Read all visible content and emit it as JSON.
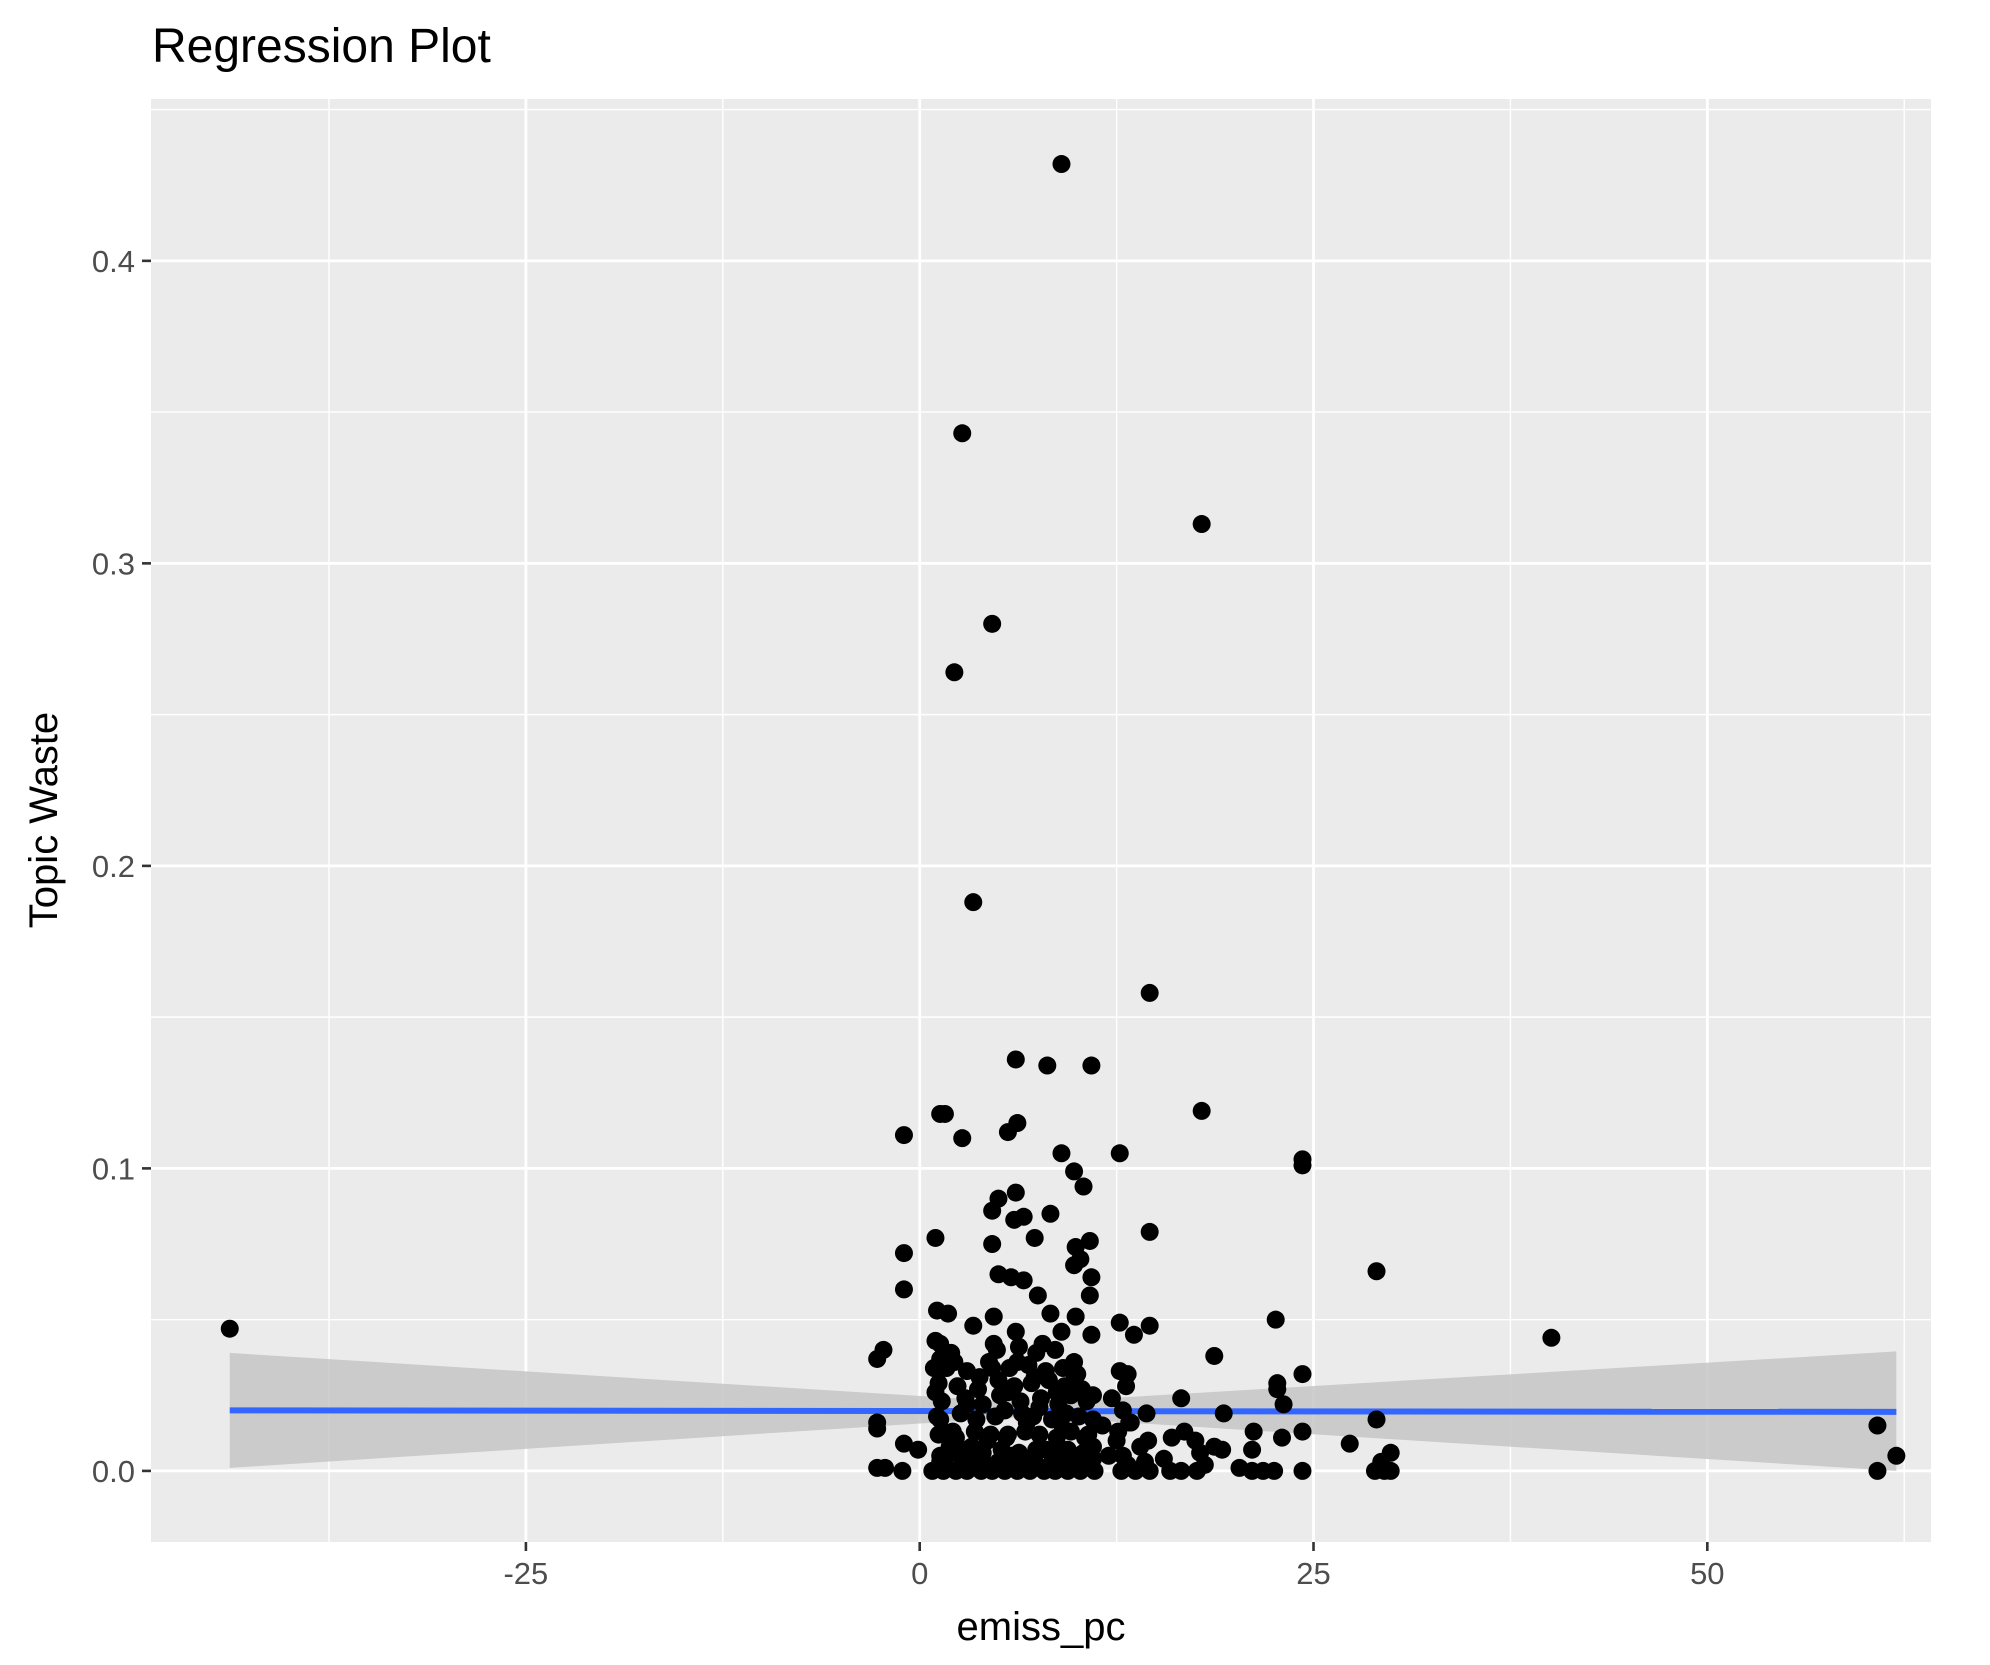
{
  "chart_data": {
    "type": "scatter",
    "title": "Regression Plot",
    "xlabel": "emiss_pc",
    "ylabel": "Topic Waste",
    "xlim": [
      -48.8,
      64.2
    ],
    "ylim": [
      -0.0235,
      0.4535
    ],
    "x_ticks": [
      -25,
      0,
      25,
      50
    ],
    "x_tick_labels": [
      "-25",
      "0",
      "25",
      "50"
    ],
    "y_ticks": [
      0.0,
      0.1,
      0.2,
      0.3,
      0.4
    ],
    "y_tick_labels": [
      "0.0",
      "0.1",
      "0.2",
      "0.3",
      "0.4"
    ],
    "grid": true,
    "legend": "none",
    "colors": {
      "panel_background": "#ebebeb",
      "grid": "#ffffff",
      "points": "#000000",
      "fit_line": "#3366ff",
      "confidence_band": "#c6c6c6"
    },
    "series": [
      {
        "points": [
          [
            -43.8,
            0.047
          ],
          [
            9.0,
            0.432
          ],
          [
            2.7,
            0.343
          ],
          [
            17.9,
            0.313
          ],
          [
            4.6,
            0.28
          ],
          [
            2.2,
            0.264
          ],
          [
            3.4,
            0.188
          ],
          [
            14.6,
            0.158
          ],
          [
            6.1,
            0.136
          ],
          [
            8.1,
            0.134
          ],
          [
            10.9,
            0.134
          ],
          [
            17.9,
            0.119
          ],
          [
            1.3,
            0.118
          ],
          [
            1.6,
            0.118
          ],
          [
            6.2,
            0.115
          ],
          [
            5.6,
            0.112
          ],
          [
            -1.0,
            0.111
          ],
          [
            2.7,
            0.11
          ],
          [
            9.0,
            0.105
          ],
          [
            12.7,
            0.105
          ],
          [
            24.3,
            0.103
          ],
          [
            24.3,
            0.101
          ],
          [
            9.8,
            0.099
          ],
          [
            10.4,
            0.094
          ],
          [
            6.1,
            0.092
          ],
          [
            5.0,
            0.09
          ],
          [
            4.6,
            0.086
          ],
          [
            8.3,
            0.085
          ],
          [
            6.6,
            0.084
          ],
          [
            6.0,
            0.083
          ],
          [
            14.6,
            0.079
          ],
          [
            7.3,
            0.077
          ],
          [
            1.0,
            0.077
          ],
          [
            10.8,
            0.076
          ],
          [
            4.6,
            0.075
          ],
          [
            9.9,
            0.074
          ],
          [
            -1.0,
            0.072
          ],
          [
            10.2,
            0.07
          ],
          [
            9.8,
            0.068
          ],
          [
            29.0,
            0.066
          ],
          [
            5.0,
            0.065
          ],
          [
            5.8,
            0.064
          ],
          [
            10.9,
            0.064
          ],
          [
            6.6,
            0.063
          ],
          [
            -1.0,
            0.06
          ],
          [
            7.5,
            0.058
          ],
          [
            10.8,
            0.058
          ],
          [
            1.1,
            0.053
          ],
          [
            1.8,
            0.052
          ],
          [
            4.7,
            0.051
          ],
          [
            8.3,
            0.052
          ],
          [
            9.9,
            0.051
          ],
          [
            12.7,
            0.049
          ],
          [
            22.6,
            0.05
          ],
          [
            3.4,
            0.048
          ],
          [
            14.6,
            0.048
          ],
          [
            6.1,
            0.046
          ],
          [
            9.0,
            0.046
          ],
          [
            10.9,
            0.045
          ],
          [
            13.6,
            0.045
          ],
          [
            40.1,
            0.044
          ],
          [
            1.0,
            0.043
          ],
          [
            1.3,
            0.042
          ],
          [
            4.7,
            0.042
          ],
          [
            7.8,
            0.042
          ],
          [
            -2.3,
            0.04
          ],
          [
            -2.7,
            0.037
          ],
          [
            18.7,
            0.038
          ],
          [
            1.3,
            0.037
          ],
          [
            2.2,
            0.036
          ],
          [
            6.2,
            0.036
          ],
          [
            9.8,
            0.036
          ],
          [
            0.9,
            0.034
          ],
          [
            4.6,
            0.034
          ],
          [
            12.7,
            0.033
          ],
          [
            13.2,
            0.032
          ],
          [
            24.3,
            0.032
          ],
          [
            3.8,
            0.031
          ],
          [
            7.3,
            0.031
          ],
          [
            9.8,
            0.03
          ],
          [
            22.7,
            0.029
          ],
          [
            22.7,
            0.027
          ],
          [
            1.0,
            0.026
          ],
          [
            5.6,
            0.026
          ],
          [
            8.7,
            0.026
          ],
          [
            11.0,
            0.025
          ],
          [
            16.6,
            0.024
          ],
          [
            23.1,
            0.022
          ],
          [
            3.0,
            0.022
          ],
          [
            7.6,
            0.021
          ],
          [
            12.9,
            0.02
          ],
          [
            19.3,
            0.019
          ],
          [
            14.4,
            0.019
          ],
          [
            1.3,
            0.017
          ],
          [
            29.0,
            0.017
          ],
          [
            -2.7,
            0.016
          ],
          [
            6.8,
            0.016
          ],
          [
            13.3,
            0.016
          ],
          [
            -2.7,
            0.014
          ],
          [
            9.1,
            0.014
          ],
          [
            60.8,
            0.015
          ],
          [
            16.8,
            0.013
          ],
          [
            2.1,
            0.013
          ],
          [
            12.6,
            0.013
          ],
          [
            21.2,
            0.013
          ],
          [
            24.3,
            0.013
          ],
          [
            1.6,
            0.012
          ],
          [
            5.6,
            0.012
          ],
          [
            10.5,
            0.011
          ],
          [
            16.0,
            0.011
          ],
          [
            23.0,
            0.011
          ],
          [
            4.3,
            0.01
          ],
          [
            14.5,
            0.01
          ],
          [
            17.5,
            0.01
          ],
          [
            -1.0,
            0.009
          ],
          [
            27.3,
            0.009
          ],
          [
            1.9,
            0.008
          ],
          [
            3.3,
            0.008
          ],
          [
            -0.1,
            0.007
          ],
          [
            11.0,
            0.008
          ],
          [
            18.7,
            0.008
          ],
          [
            19.2,
            0.007
          ],
          [
            21.1,
            0.007
          ],
          [
            8.0,
            0.007
          ],
          [
            17.8,
            0.006
          ],
          [
            29.9,
            0.006
          ],
          [
            1.3,
            0.005
          ],
          [
            5.8,
            0.005
          ],
          [
            9.8,
            0.005
          ],
          [
            12.9,
            0.005
          ],
          [
            62.0,
            0.005
          ],
          [
            3.1,
            0.004
          ],
          [
            7.1,
            0.004
          ],
          [
            11.0,
            0.004
          ],
          [
            14.3,
            0.003
          ],
          [
            29.3,
            0.003
          ],
          [
            1.3,
            0.003
          ],
          [
            4.2,
            0.002
          ],
          [
            6.6,
            0.002
          ],
          [
            9.7,
            0.002
          ],
          [
            13.2,
            0.002
          ],
          [
            -2.7,
            0.001
          ],
          [
            -2.2,
            0.001
          ],
          [
            -1.1,
            0.0
          ],
          [
            0.8,
            0.0
          ],
          [
            1.5,
            0.0
          ],
          [
            2.3,
            0.0
          ],
          [
            3.0,
            0.0
          ],
          [
            3.9,
            0.0
          ],
          [
            4.6,
            0.0
          ],
          [
            5.4,
            0.0
          ],
          [
            6.2,
            0.0
          ],
          [
            7.0,
            0.0
          ],
          [
            7.9,
            0.0
          ],
          [
            8.6,
            0.0
          ],
          [
            9.4,
            0.0
          ],
          [
            10.2,
            0.0
          ],
          [
            11.1,
            0.0
          ],
          [
            12.8,
            0.0
          ],
          [
            13.7,
            0.0
          ],
          [
            14.6,
            0.0
          ],
          [
            15.9,
            0.0
          ],
          [
            16.6,
            0.0
          ],
          [
            17.6,
            0.0
          ],
          [
            21.1,
            0.0
          ],
          [
            21.8,
            0.0
          ],
          [
            22.5,
            0.0
          ],
          [
            24.3,
            0.0
          ],
          [
            28.9,
            0.0
          ],
          [
            29.5,
            0.0
          ],
          [
            29.9,
            0.0
          ],
          [
            60.8,
            0.0
          ],
          [
            1.1,
            0.018
          ],
          [
            2.6,
            0.019
          ],
          [
            3.6,
            0.017
          ],
          [
            4.8,
            0.018
          ],
          [
            5.4,
            0.02
          ],
          [
            6.5,
            0.019
          ],
          [
            7.2,
            0.018
          ],
          [
            8.4,
            0.017
          ],
          [
            9.3,
            0.019
          ],
          [
            10.1,
            0.018
          ],
          [
            11.0,
            0.017
          ],
          [
            1.4,
            0.023
          ],
          [
            2.9,
            0.024
          ],
          [
            4.0,
            0.022
          ],
          [
            5.1,
            0.025
          ],
          [
            6.4,
            0.023
          ],
          [
            7.7,
            0.024
          ],
          [
            8.8,
            0.022
          ],
          [
            9.6,
            0.025
          ],
          [
            10.6,
            0.023
          ],
          [
            1.2,
            0.029
          ],
          [
            2.4,
            0.028
          ],
          [
            3.7,
            0.027
          ],
          [
            5.0,
            0.03
          ],
          [
            6.0,
            0.028
          ],
          [
            7.1,
            0.029
          ],
          [
            8.2,
            0.03
          ],
          [
            9.2,
            0.028
          ],
          [
            10.3,
            0.027
          ],
          [
            1.7,
            0.034
          ],
          [
            3.0,
            0.033
          ],
          [
            4.4,
            0.036
          ],
          [
            5.7,
            0.034
          ],
          [
            6.9,
            0.035
          ],
          [
            8.0,
            0.033
          ],
          [
            9.1,
            0.034
          ],
          [
            10.0,
            0.032
          ],
          [
            2.0,
            0.039
          ],
          [
            4.9,
            0.04
          ],
          [
            6.3,
            0.041
          ],
          [
            7.4,
            0.039
          ],
          [
            8.6,
            0.04
          ],
          [
            1.2,
            0.012
          ],
          [
            2.3,
            0.011
          ],
          [
            3.5,
            0.013
          ],
          [
            4.5,
            0.012
          ],
          [
            5.5,
            0.011
          ],
          [
            6.7,
            0.013
          ],
          [
            7.6,
            0.012
          ],
          [
            8.7,
            0.011
          ],
          [
            9.6,
            0.013
          ],
          [
            10.7,
            0.012
          ],
          [
            1.9,
            0.006
          ],
          [
            2.8,
            0.007
          ],
          [
            4.0,
            0.006
          ],
          [
            5.2,
            0.007
          ],
          [
            6.3,
            0.006
          ],
          [
            7.4,
            0.007
          ],
          [
            8.5,
            0.006
          ],
          [
            9.4,
            0.007
          ],
          [
            10.4,
            0.006
          ],
          [
            1.6,
            0.002
          ],
          [
            2.7,
            0.003
          ],
          [
            3.8,
            0.002
          ],
          [
            5.0,
            0.003
          ],
          [
            6.0,
            0.002
          ],
          [
            7.3,
            0.003
          ],
          [
            8.3,
            0.002
          ],
          [
            9.2,
            0.003
          ],
          [
            10.5,
            0.002
          ],
          [
            12.5,
            0.01
          ],
          [
            13.4,
            0.016
          ],
          [
            14.0,
            0.008
          ],
          [
            12.2,
            0.024
          ],
          [
            13.1,
            0.028
          ],
          [
            15.5,
            0.004
          ],
          [
            18.1,
            0.002
          ],
          [
            20.3,
            0.001
          ],
          [
            11.6,
            0.015
          ],
          [
            12.0,
            0.005
          ]
        ]
      }
    ],
    "fit_line": {
      "x": [
        -43.8,
        62.0
      ],
      "y": [
        0.02,
        0.0195
      ]
    },
    "confidence_band": {
      "x": [
        -43.8,
        7.0,
        62.0
      ],
      "lower": [
        0.001,
        0.018,
        0.0
      ],
      "upper": [
        0.039,
        0.0225,
        0.0395
      ]
    }
  }
}
